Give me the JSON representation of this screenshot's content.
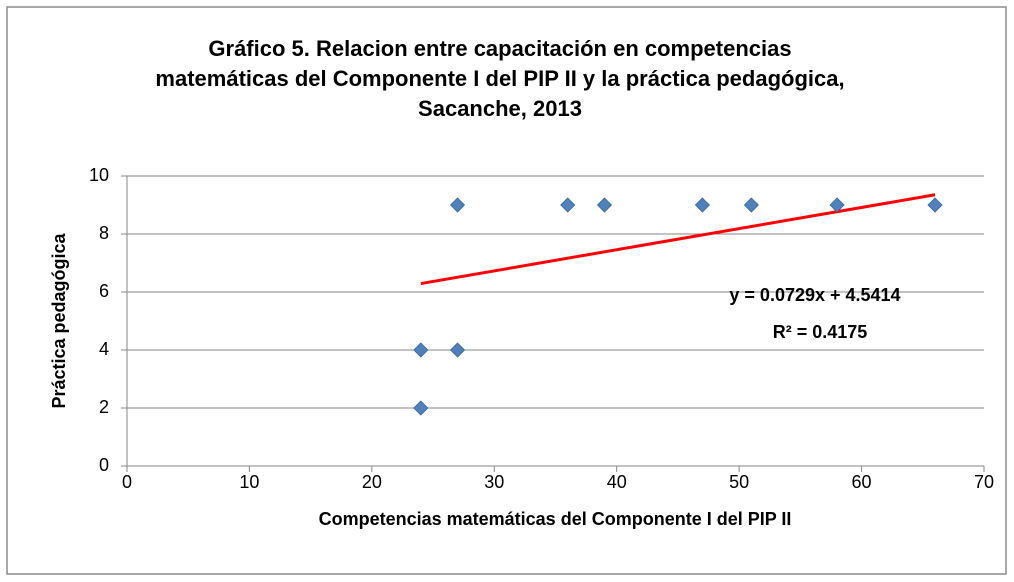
{
  "chart_data": {
    "type": "scatter",
    "title": [
      "Gráfico 5. Relacion entre capacitación en competencias",
      "matemáticas del Componente I del PIP II y la práctica pedagógica,",
      "Sacanche, 2013"
    ],
    "x_label": "Competencias matemáticas del Componente I del PIP II",
    "y_label": "Práctica pedagógica",
    "x": [
      24,
      24,
      27,
      27,
      36,
      39,
      47,
      51,
      58,
      66
    ],
    "values": [
      4,
      2,
      4,
      9,
      9,
      9,
      9,
      9,
      9,
      9
    ],
    "color": "#4f81bd",
    "xlim": [
      0,
      70
    ],
    "xticks": [
      0,
      10,
      20,
      30,
      40,
      50,
      60,
      70
    ],
    "ylim": [
      0,
      10
    ],
    "yticks": [
      0,
      2,
      4,
      6,
      8,
      10
    ],
    "grid": true,
    "trendline": {
      "slope": 0.0729,
      "intercept": 4.5414,
      "r2": 0.4175,
      "color": "#ff0000",
      "label": "y = 0.0729x + 4.5414",
      "r2_label": "R² = 0.4175"
    }
  }
}
